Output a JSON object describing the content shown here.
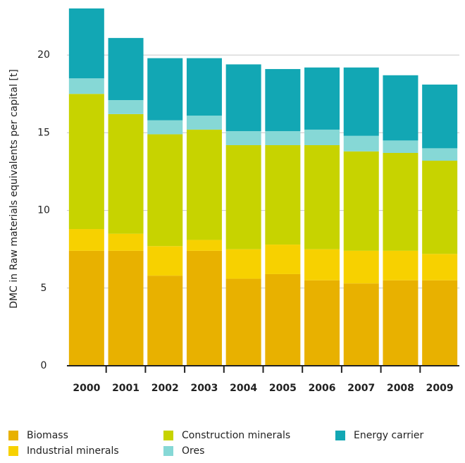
{
  "chart_data": {
    "type": "stacked_bar",
    "y_label": "DMC in Raw materials equivalents per capital [t]",
    "categories": [
      "2000",
      "2001",
      "2002",
      "2003",
      "2004",
      "2005",
      "2006",
      "2007",
      "2008",
      "2009"
    ],
    "series": [
      {
        "name": "Biomass",
        "color": "#e8b100",
        "values": [
          7.4,
          7.4,
          5.8,
          7.4,
          5.6,
          5.9,
          5.5,
          5.3,
          5.5,
          5.5
        ]
      },
      {
        "name": "Industrial minerals",
        "color": "#f7d100",
        "values": [
          1.4,
          1.1,
          1.9,
          0.7,
          1.9,
          1.9,
          2.0,
          2.1,
          1.9,
          1.7
        ]
      },
      {
        "name": "Construction minerals",
        "color": "#c7d300",
        "values": [
          8.7,
          7.7,
          7.2,
          7.1,
          6.7,
          6.4,
          6.7,
          6.4,
          6.3,
          6.0
        ]
      },
      {
        "name": "Ores",
        "color": "#86d8d6",
        "values": [
          1.0,
          0.9,
          0.9,
          0.9,
          0.9,
          0.9,
          1.0,
          1.0,
          0.8,
          0.8
        ]
      },
      {
        "name": "Energy carrier",
        "color": "#12a7b4",
        "values": [
          4.5,
          4.0,
          4.0,
          3.7,
          4.3,
          4.0,
          4.0,
          4.4,
          4.2,
          4.1
        ]
      }
    ],
    "ylim": [
      0,
      23
    ],
    "yticks": [
      0,
      5,
      10,
      15,
      20
    ],
    "grid": true
  }
}
